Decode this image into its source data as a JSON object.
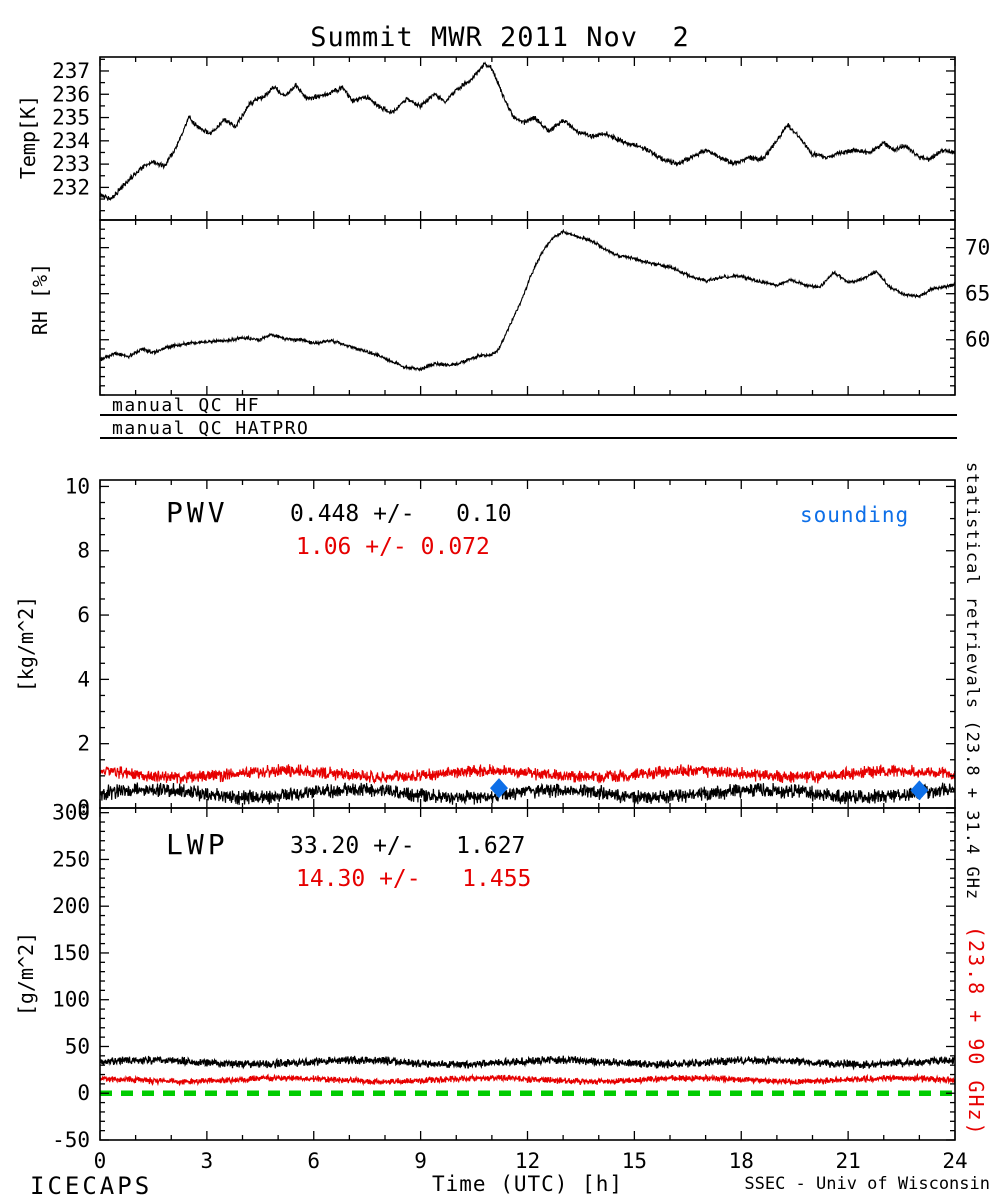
{
  "title": "Summit MWR 2011 Nov  2",
  "qc_lines": [
    {
      "label": "manual QC HF"
    },
    {
      "label": "manual QC HATPRO"
    }
  ],
  "annotations": {
    "pwv_label": "PWV",
    "pwv_stat_black": "0.448 +/-   0.10",
    "pwv_stat_red": "1.06 +/- 0.072",
    "sounding_label": "sounding",
    "lwp_label": "LWP",
    "lwp_stat_black": "33.20 +/-   1.627",
    "lwp_stat_red": "14.30 +/-   1.455"
  },
  "right_labels": {
    "statistical": "statistical retrievals (23.8 + 31.4 GHz",
    "red_band": "(23.8 + 90 GHz)"
  },
  "footer": {
    "project": "ICECAPS",
    "xlabel": "Time (UTC) [h]",
    "credit": "SSEC - Univ of Wisconsin"
  },
  "colors": {
    "black": "#000000",
    "red": "#e60000",
    "green": "#00cc00",
    "blue": "#0d6fe8"
  },
  "chart_data": [
    {
      "id": "temp",
      "type": "line",
      "ylabel": "Temp[K]",
      "ylim": [
        230.6,
        237.6
      ],
      "yticks": [
        232,
        233,
        234,
        235,
        236,
        237
      ],
      "yminor_step": 0.5,
      "ytick_side": "left",
      "xlim": [
        0,
        24
      ],
      "xticks": [
        0,
        3,
        6,
        9,
        12,
        15,
        18,
        21,
        24
      ],
      "xminor_step": 1,
      "xtick_labels": false,
      "series": [
        {
          "name": "temperature",
          "color_key": "black",
          "width": 1.1,
          "noise": 0.13,
          "keypoints": [
            [
              0,
              231.7
            ],
            [
              0.3,
              231.5
            ],
            [
              0.8,
              232.3
            ],
            [
              1.2,
              232.9
            ],
            [
              1.5,
              233.1
            ],
            [
              1.8,
              232.9
            ],
            [
              2.1,
              233.6
            ],
            [
              2.5,
              235
            ],
            [
              2.8,
              234.5
            ],
            [
              3.1,
              234.3
            ],
            [
              3.5,
              234.9
            ],
            [
              3.8,
              234.6
            ],
            [
              4.2,
              235.6
            ],
            [
              4.6,
              235.9
            ],
            [
              4.9,
              236.3
            ],
            [
              5.2,
              235.9
            ],
            [
              5.5,
              236.4
            ],
            [
              5.8,
              235.8
            ],
            [
              6.1,
              235.9
            ],
            [
              6.4,
              236
            ],
            [
              6.8,
              236.3
            ],
            [
              7.1,
              235.7
            ],
            [
              7.5,
              235.9
            ],
            [
              7.8,
              235.5
            ],
            [
              8.2,
              235.2
            ],
            [
              8.6,
              235.8
            ],
            [
              9,
              235.5
            ],
            [
              9.4,
              236
            ],
            [
              9.7,
              235.7
            ],
            [
              10,
              236.2
            ],
            [
              10.4,
              236.6
            ],
            [
              10.8,
              237.3
            ],
            [
              11,
              237.1
            ],
            [
              11.3,
              236
            ],
            [
              11.6,
              235
            ],
            [
              11.9,
              234.8
            ],
            [
              12.2,
              235
            ],
            [
              12.6,
              234.4
            ],
            [
              13,
              234.9
            ],
            [
              13.4,
              234.4
            ],
            [
              13.8,
              234.2
            ],
            [
              14.2,
              234.3
            ],
            [
              14.6,
              234
            ],
            [
              15,
              233.8
            ],
            [
              15.4,
              233.6
            ],
            [
              15.8,
              233.2
            ],
            [
              16.2,
              233
            ],
            [
              16.6,
              233.3
            ],
            [
              17,
              233.6
            ],
            [
              17.4,
              233.3
            ],
            [
              17.8,
              233
            ],
            [
              18.2,
              233.3
            ],
            [
              18.6,
              233.2
            ],
            [
              19,
              234
            ],
            [
              19.3,
              234.7
            ],
            [
              19.6,
              234.2
            ],
            [
              20,
              233.4
            ],
            [
              20.4,
              233.3
            ],
            [
              20.8,
              233.5
            ],
            [
              21.2,
              233.6
            ],
            [
              21.6,
              233.5
            ],
            [
              22,
              233.9
            ],
            [
              22.3,
              233.6
            ],
            [
              22.6,
              233.8
            ],
            [
              23,
              233.3
            ],
            [
              23.3,
              233.2
            ],
            [
              23.6,
              233.6
            ],
            [
              24,
              233.5
            ]
          ]
        }
      ]
    },
    {
      "id": "rh",
      "type": "line",
      "ylabel": "RH [%]",
      "ylim": [
        54,
        73
      ],
      "yticks": [
        60,
        65,
        70
      ],
      "yminor_step": 1,
      "ytick_side": "right",
      "xlim": [
        0,
        24
      ],
      "xticks": [
        0,
        3,
        6,
        9,
        12,
        15,
        18,
        21,
        24
      ],
      "xminor_step": 1,
      "xtick_labels": false,
      "series": [
        {
          "name": "relative-humidity",
          "color_key": "black",
          "width": 1.1,
          "noise": 0.22,
          "keypoints": [
            [
              0,
              57.8
            ],
            [
              0.4,
              58.5
            ],
            [
              0.8,
              58.2
            ],
            [
              1.2,
              59
            ],
            [
              1.5,
              58.6
            ],
            [
              2,
              59.3
            ],
            [
              2.5,
              59.6
            ],
            [
              3,
              59.8
            ],
            [
              3.5,
              59.9
            ],
            [
              4,
              60.2
            ],
            [
              4.5,
              60
            ],
            [
              4.8,
              60.6
            ],
            [
              5.2,
              60.1
            ],
            [
              5.6,
              60
            ],
            [
              6,
              59.6
            ],
            [
              6.5,
              59.9
            ],
            [
              7,
              59.3
            ],
            [
              7.4,
              58.8
            ],
            [
              7.8,
              58.3
            ],
            [
              8.2,
              57.6
            ],
            [
              8.6,
              57
            ],
            [
              9,
              56.8
            ],
            [
              9.4,
              57.4
            ],
            [
              9.8,
              57.2
            ],
            [
              10.2,
              57.6
            ],
            [
              10.6,
              58.2
            ],
            [
              11,
              58.4
            ],
            [
              11.2,
              59
            ],
            [
              11.5,
              61.5
            ],
            [
              11.8,
              64
            ],
            [
              12.1,
              67
            ],
            [
              12.4,
              69.5
            ],
            [
              12.7,
              71
            ],
            [
              13,
              71.8
            ],
            [
              13.3,
              71.3
            ],
            [
              13.6,
              71
            ],
            [
              13.9,
              70.5
            ],
            [
              14.2,
              69.8
            ],
            [
              14.5,
              69.2
            ],
            [
              15,
              68.8
            ],
            [
              15.5,
              68.3
            ],
            [
              16,
              67.9
            ],
            [
              16.5,
              67
            ],
            [
              17,
              66.4
            ],
            [
              17.5,
              66.8
            ],
            [
              18,
              66.9
            ],
            [
              18.5,
              66.3
            ],
            [
              19,
              65.9
            ],
            [
              19.4,
              66.5
            ],
            [
              19.8,
              65.9
            ],
            [
              20.2,
              65.7
            ],
            [
              20.6,
              67.3
            ],
            [
              21,
              66.2
            ],
            [
              21.4,
              66.6
            ],
            [
              21.8,
              67.4
            ],
            [
              22.2,
              65.6
            ],
            [
              22.6,
              64.9
            ],
            [
              23,
              64.7
            ],
            [
              23.4,
              65.6
            ],
            [
              23.8,
              65.8
            ],
            [
              24,
              66
            ]
          ]
        }
      ]
    },
    {
      "id": "pwv",
      "type": "line",
      "ylabel": "[kg/m^2]",
      "ylim": [
        0,
        10.2
      ],
      "yticks": [
        0,
        2,
        4,
        6,
        8,
        10
      ],
      "yminor_step": 0.5,
      "ytick_side": "left",
      "xlim": [
        0,
        24
      ],
      "xticks": [
        0,
        3,
        6,
        9,
        12,
        15,
        18,
        21,
        24
      ],
      "xminor_step": 1,
      "xtick_labels": false,
      "series": [
        {
          "name": "pwv-23-31ghz",
          "color_key": "black",
          "width": 1.2,
          "flat": 0.448,
          "noise": 0.26
        },
        {
          "name": "pwv-23-90ghz",
          "color_key": "red",
          "width": 1.2,
          "flat": 1.06,
          "noise": 0.22
        }
      ],
      "markers": {
        "name": "sounding",
        "color_key": "blue",
        "shape": "diamond",
        "points": [
          [
            11.2,
            0.62
          ],
          [
            23.0,
            0.55
          ]
        ]
      },
      "stats": {
        "black_mean": 0.448,
        "black_sigma": 0.1,
        "red_mean": 1.06,
        "red_sigma": 0.072
      }
    },
    {
      "id": "lwp",
      "type": "line",
      "ylabel": "[g/m^2]",
      "ylim": [
        -50,
        305
      ],
      "yticks": [
        -50,
        0,
        50,
        100,
        150,
        200,
        250,
        300
      ],
      "yminor_step": 10,
      "ytick_side": "left",
      "xlim": [
        0,
        24
      ],
      "xticks": [
        0,
        3,
        6,
        9,
        12,
        15,
        18,
        21,
        24
      ],
      "xminor_step": 1,
      "xtick_labels": true,
      "series": [
        {
          "name": "lwp-23-31ghz",
          "color_key": "black",
          "width": 1.3,
          "flat": 33.2,
          "noise": 5
        },
        {
          "name": "lwp-23-90ghz",
          "color_key": "red",
          "width": 1.3,
          "flat": 14.3,
          "noise": 4
        },
        {
          "name": "zero-reference",
          "color_key": "green",
          "width": 5.5,
          "flat": 0,
          "noise": 0,
          "dash": "12 9"
        }
      ],
      "stats": {
        "black_mean": 33.2,
        "black_sigma": 1.627,
        "red_mean": 14.3,
        "red_sigma": 1.455
      }
    }
  ]
}
